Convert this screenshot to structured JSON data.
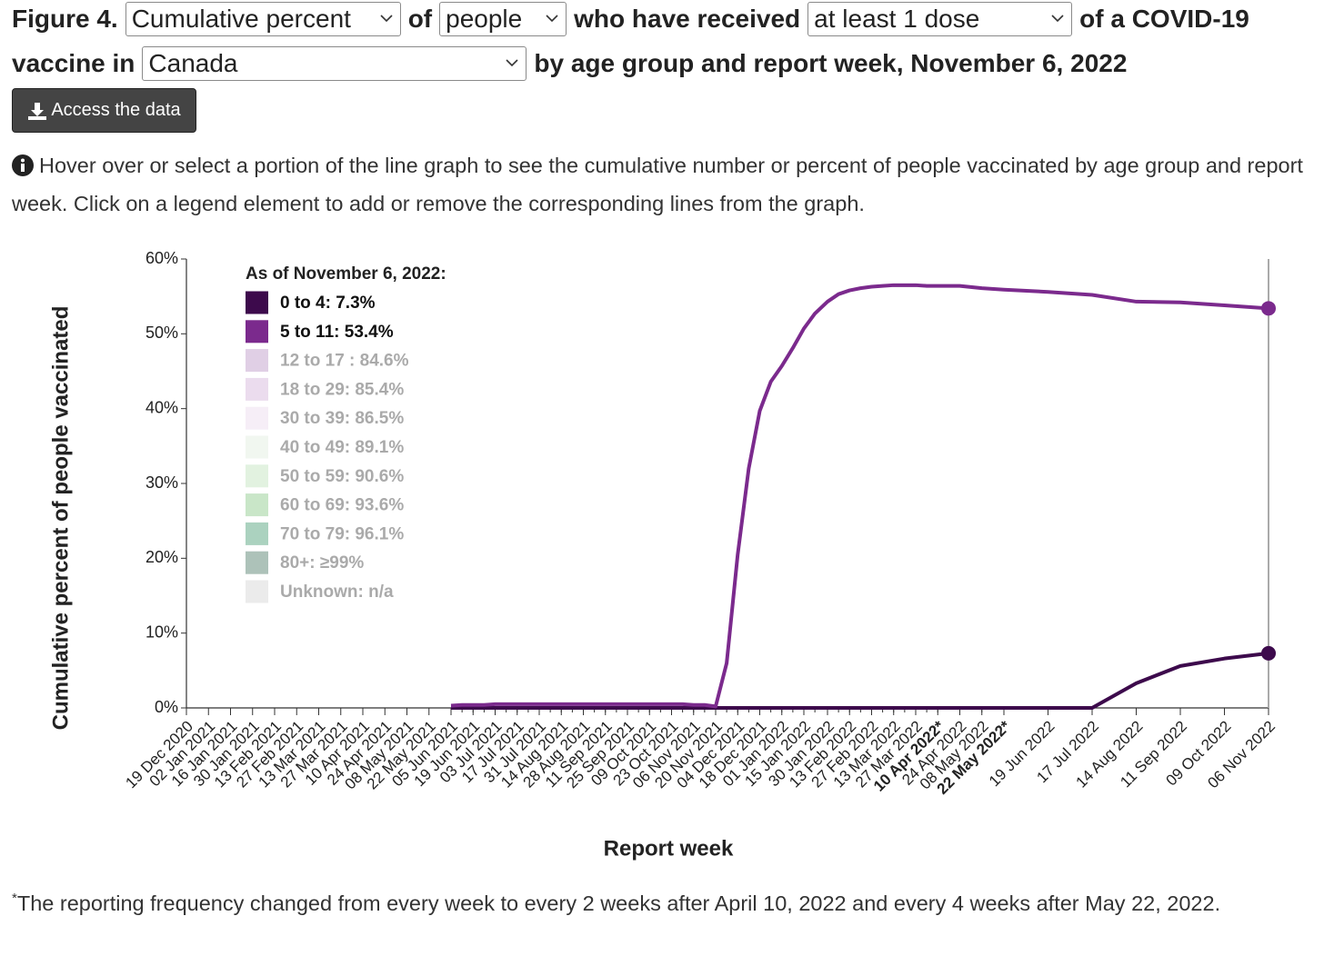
{
  "header": {
    "label": "Figure 4.",
    "measure": "Cumulative percent",
    "t1": "of",
    "population": "people",
    "t2": "who have received",
    "dose": "at least 1 dose",
    "t3": "of a COVID-19",
    "t4": "vaccine in",
    "region": "Canada",
    "t5": "by age group and report week, November 6, 2022"
  },
  "button": "Access the data",
  "info": "Hover over or select a portion of the line graph to see the cumulative number or percent of people vaccinated by age group and report week. Click on a legend element to add or remove the corresponding lines from the graph.",
  "chart_data": {
    "type": "line",
    "y_label": "Cumulative percent of people vaccinated",
    "x_label": "Report week",
    "legend_title": "As of November 6, 2022:",
    "xlim": [
      "19 Dec 2020",
      "06 Nov 2022"
    ],
    "ylim": [
      0,
      60
    ],
    "yticks": [
      {
        "value": 0,
        "label": "0%"
      },
      {
        "value": 10,
        "label": "10%"
      },
      {
        "value": 20,
        "label": "20%"
      },
      {
        "value": 30,
        "label": "30%"
      },
      {
        "value": 40,
        "label": "40%"
      },
      {
        "value": 50,
        "label": "50%"
      },
      {
        "value": 60,
        "label": "60%"
      }
    ],
    "xticks": [
      "19 Dec 2020",
      "02 Jan 2021",
      "16 Jan 2021",
      "30 Jan 2021",
      "13 Feb 2021",
      "27 Feb 2021",
      "13 Mar 2021",
      "27 Mar 2021",
      "10 Apr 2021",
      "24 Apr 2021",
      "08 May 2021",
      "22 May 2021",
      "05 Jun 2021",
      "19 Jun 2021",
      "03 Jul 2021",
      "17 Jul 2021",
      "31 Jul 2021",
      "14 Aug 2021",
      "28 Aug 2021",
      "11 Sep 2021",
      "25 Sep 2021",
      "09 Oct 2021",
      "23 Oct 2021",
      "06 Nov 2021",
      "20 Nov 2021",
      "04 Dec 2021",
      "18 Dec 2021",
      "01 Jan 2022",
      "15 Jan 2022",
      "30 Jan 2022",
      "13 Feb 2022",
      "27 Feb 2022",
      "13 Mar 2022",
      "27 Mar 2022",
      {
        "value": "10 Apr 2022",
        "label": "10 Apr 2022*"
      },
      "24 Apr 2022",
      "08 May 2022",
      {
        "value": "22 May 2022",
        "label": "22 May 2022*"
      },
      "19 Jun 2022",
      "17 Jul 2022",
      "14 Aug 2022",
      "11 Sep 2022",
      "09 Oct 2022",
      "06 Nov 2022"
    ],
    "x": [
      "05 Jun 2021",
      "12 Jun 2021",
      "19 Jun 2021",
      "26 Jun 2021",
      "03 Jul 2021",
      "10 Jul 2021",
      "17 Jul 2021",
      "24 Jul 2021",
      "31 Jul 2021",
      "07 Aug 2021",
      "14 Aug 2021",
      "21 Aug 2021",
      "28 Aug 2021",
      "04 Sep 2021",
      "11 Sep 2021",
      "18 Sep 2021",
      "25 Sep 2021",
      "02 Oct 2021",
      "09 Oct 2021",
      "16 Oct 2021",
      "23 Oct 2021",
      "30 Oct 2021",
      "06 Nov 2021",
      "13 Nov 2021",
      "20 Nov 2021",
      "27 Nov 2021",
      "04 Dec 2021",
      "11 Dec 2021",
      "18 Dec 2021",
      "25 Dec 2021",
      "01 Jan 2022",
      "08 Jan 2022",
      "15 Jan 2022",
      "22 Jan 2022",
      "30 Jan 2022",
      "06 Feb 2022",
      "13 Feb 2022",
      "20 Feb 2022",
      "27 Feb 2022",
      "06 Mar 2022",
      "13 Mar 2022",
      "20 Mar 2022",
      "27 Mar 2022",
      "03 Apr 2022",
      "10 Apr 2022",
      "24 Apr 2022",
      "08 May 2022",
      "22 May 2022",
      "19 Jun 2022",
      "17 Jul 2022",
      "14 Aug 2022",
      "11 Sep 2022",
      "09 Oct 2022",
      "06 Nov 2022"
    ],
    "series": [
      {
        "name": "0 to 4: 7.3%",
        "color": "#3d0a4c",
        "visible": true,
        "values": [
          0,
          0,
          0,
          0,
          0,
          0,
          0,
          0,
          0,
          0,
          0,
          0,
          0,
          0,
          0,
          0,
          0,
          0,
          0,
          0,
          0,
          0,
          0,
          0,
          0,
          0,
          0,
          0,
          0,
          0,
          0,
          0,
          0,
          0,
          0,
          0,
          0,
          0,
          0,
          0,
          0,
          0,
          0,
          0,
          0,
          0,
          0,
          0,
          0,
          0,
          3.3,
          5.6,
          6.6,
          7.3
        ]
      },
      {
        "name": "5 to 11: 53.4%",
        "color": "#7b2a8d",
        "visible": true,
        "values": [
          0.3,
          0.4,
          0.4,
          0.4,
          0.5,
          0.5,
          0.5,
          0.5,
          0.5,
          0.5,
          0.5,
          0.5,
          0.5,
          0.5,
          0.5,
          0.5,
          0.5,
          0.5,
          0.5,
          0.5,
          0.5,
          0.5,
          0.4,
          0.4,
          0.2,
          6.0,
          20.5,
          32.0,
          39.7,
          43.6,
          45.7,
          48.1,
          50.7,
          52.7,
          54.3,
          55.3,
          55.8,
          56.1,
          56.3,
          56.4,
          56.5,
          56.5,
          56.5,
          56.4,
          56.4,
          56.4,
          56.1,
          55.9,
          55.6,
          55.2,
          54.3,
          54.2,
          53.8,
          53.4
        ]
      },
      {
        "name": "12 to 17 : 84.6%",
        "color": "#e0cfe5",
        "visible": false
      },
      {
        "name": "18 to 29: 85.4%",
        "color": "#ebdcee",
        "visible": false
      },
      {
        "name": "30 to 39: 86.5%",
        "color": "#f6eef7",
        "visible": false
      },
      {
        "name": "40 to 49: 89.1%",
        "color": "#f1f7f0",
        "visible": false
      },
      {
        "name": "50 to 59: 90.6%",
        "color": "#e2f2e0",
        "visible": false
      },
      {
        "name": "60 to 69: 93.6%",
        "color": "#c9e6c8",
        "visible": false
      },
      {
        "name": "70 to 79: 96.1%",
        "color": "#abd2bf",
        "visible": false
      },
      {
        "name": "80+: ≥99%",
        "color": "#adc2b9",
        "visible": false
      },
      {
        "name": "Unknown: n/a",
        "color": "#ebebeb",
        "visible": false
      }
    ]
  },
  "footnote": {
    "mark": "*",
    "text": "The reporting frequency changed from every week to every 2 weeks after April 10, 2022 and every 4 weeks after May 22, 2022."
  }
}
